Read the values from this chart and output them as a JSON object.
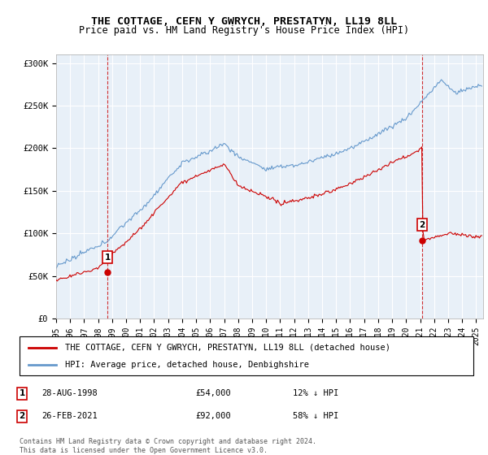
{
  "title": "THE COTTAGE, CEFN Y GWRYCH, PRESTATYN, LL19 8LL",
  "subtitle": "Price paid vs. HM Land Registry's House Price Index (HPI)",
  "ylabel_ticks": [
    "£0",
    "£50K",
    "£100K",
    "£150K",
    "£200K",
    "£250K",
    "£300K"
  ],
  "ytick_values": [
    0,
    50000,
    100000,
    150000,
    200000,
    250000,
    300000
  ],
  "ylim": [
    0,
    310000
  ],
  "sale1": {
    "date_num": 1998.66,
    "price": 54000,
    "label": "1",
    "date_str": "28-AUG-1998",
    "pct": "12% ↓ HPI"
  },
  "sale2": {
    "date_num": 2021.15,
    "price": 92000,
    "label": "2",
    "date_str": "26-FEB-2021",
    "pct": "58% ↓ HPI"
  },
  "hpi_color": "#6699cc",
  "price_color": "#cc0000",
  "vline_color": "#cc0000",
  "dot_color": "#cc0000",
  "background_color": "#ffffff",
  "plot_bg_color": "#e8f0f8",
  "grid_color": "#ffffff",
  "legend_entry1": "THE COTTAGE, CEFN Y GWRYCH, PRESTATYN, LL19 8LL (detached house)",
  "legend_entry2": "HPI: Average price, detached house, Denbighshire",
  "footnote1": "Contains HM Land Registry data © Crown copyright and database right 2024.",
  "footnote2": "This data is licensed under the Open Government Licence v3.0.",
  "xlim_start": 1995.0,
  "xlim_end": 2025.5,
  "xtick_years": [
    1995,
    1996,
    1997,
    1998,
    1999,
    2000,
    2001,
    2002,
    2003,
    2004,
    2005,
    2006,
    2007,
    2008,
    2009,
    2010,
    2011,
    2012,
    2013,
    2014,
    2015,
    2016,
    2017,
    2018,
    2019,
    2020,
    2021,
    2022,
    2023,
    2024,
    2025
  ]
}
